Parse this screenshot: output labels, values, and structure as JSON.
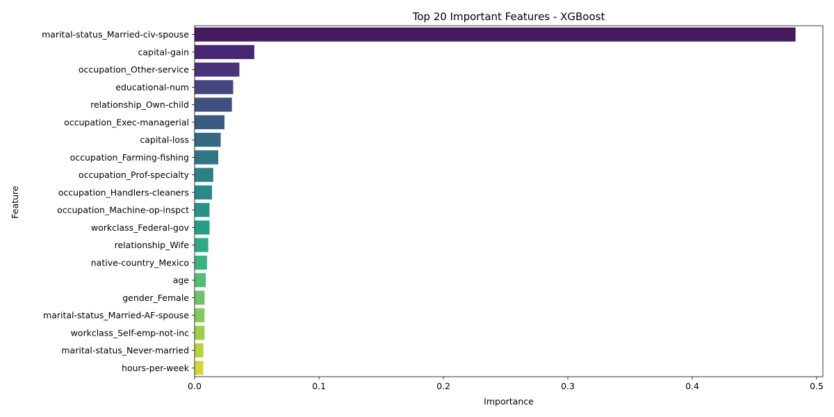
{
  "chart_data": {
    "type": "bar",
    "orientation": "horizontal",
    "title": "Top 20 Important Features - XGBoost",
    "xlabel": "Importance",
    "ylabel": "Feature",
    "xlim": [
      0,
      0.505
    ],
    "xticks": [
      0.0,
      0.1,
      0.2,
      0.3,
      0.4,
      0.5
    ],
    "xtick_labels": [
      "0.0",
      "0.1",
      "0.2",
      "0.3",
      "0.4",
      "0.5"
    ],
    "grid": false,
    "legend": "none",
    "palette": "viridis",
    "categories": [
      "marital-status_Married-civ-spouse",
      "capital-gain",
      "occupation_Other-service",
      "educational-num",
      "relationship_Own-child",
      "occupation_Exec-managerial",
      "capital-loss",
      "occupation_Farming-fishing",
      "occupation_Prof-specialty",
      "occupation_Handlers-cleaners",
      "occupation_Machine-op-inspct",
      "workclass_Federal-gov",
      "relationship_Wife",
      "native-country_Mexico",
      "age",
      "gender_Female",
      "marital-status_Married-AF-spouse",
      "workclass_Self-emp-not-inc",
      "marital-status_Never-married",
      "hours-per-week"
    ],
    "values": [
      0.483,
      0.048,
      0.036,
      0.031,
      0.03,
      0.024,
      0.021,
      0.019,
      0.015,
      0.014,
      0.012,
      0.012,
      0.011,
      0.01,
      0.009,
      0.008,
      0.008,
      0.008,
      0.007,
      0.007
    ],
    "colors": [
      "#461a5e",
      "#4a2774",
      "#4a337b",
      "#45457f",
      "#404f80",
      "#3b5c81",
      "#366a82",
      "#317584",
      "#2c8186",
      "#298987",
      "#279388",
      "#279d87",
      "#2ea984",
      "#3bb37f",
      "#53bd74",
      "#6bc466",
      "#83ca58",
      "#a0cf47",
      "#bad339",
      "#d2d737"
    ]
  }
}
